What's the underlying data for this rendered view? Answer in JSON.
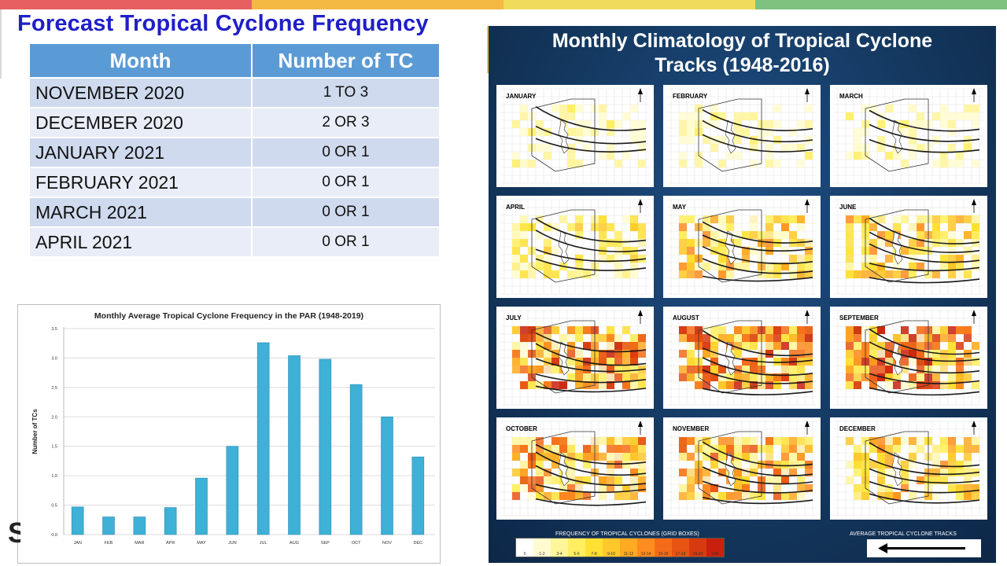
{
  "header": {
    "title": "Forecast Tropical Cyclone Frequency",
    "topbar_colors": [
      "#e66060",
      "#f4b942",
      "#f0dc5a",
      "#7fc27f",
      "#5fb8e0"
    ]
  },
  "forecast_table": {
    "headers": [
      "Month",
      "Number of TC"
    ],
    "rows": [
      {
        "month": "NOVEMBER 2020",
        "number": "1  TO 3"
      },
      {
        "month": "DECEMBER 2020",
        "number": "2  OR 3"
      },
      {
        "month": "JANUARY 2021",
        "number": "0 OR 1"
      },
      {
        "month": "FEBRUARY 2021",
        "number": "0 OR 1"
      },
      {
        "month": "MARCH 2021",
        "number": "0 OR 1"
      },
      {
        "month": "APRIL 2021",
        "number": "0 OR 1"
      }
    ],
    "colors": {
      "header": "#5b9bd5",
      "row_dark": "#cfdaee",
      "row_light": "#e8edf7"
    }
  },
  "chart_data": {
    "type": "bar",
    "title": "Monthly Average Tropical Cyclone Frequency in the PAR (1948-2019)",
    "xlabel": "",
    "ylabel": "Number of TCs",
    "categories": [
      "JAN",
      "FEB",
      "MAR",
      "APR",
      "MAY",
      "JUN",
      "JUL",
      "AUG",
      "SEP",
      "OCT",
      "NOV",
      "DEC"
    ],
    "values": [
      0.47,
      0.3,
      0.3,
      0.46,
      0.96,
      1.5,
      3.26,
      3.04,
      2.98,
      2.55,
      2.0,
      1.32
    ],
    "ylim": [
      0,
      3.5
    ],
    "yticks": [
      "0.0",
      "0.5",
      "1.0",
      "1.5",
      "2.0",
      "2.5",
      "3.0",
      "3.5"
    ],
    "grid": true,
    "bar_color": "#3fb0d6"
  },
  "climatology": {
    "title_line1": "Monthly Climatology of Tropical Cyclone",
    "title_line2": "Tracks (1948-2016)",
    "panels": [
      "JANUARY",
      "FEBRUARY",
      "MARCH",
      "APRIL",
      "MAY",
      "JUNE",
      "JULY",
      "AUGUST",
      "SEPTEMBER",
      "OCTOBER",
      "NOVEMBER",
      "DECEMBER"
    ],
    "legend_title": "FREQUENCY OF TROPICAL CYCLONES (GRID BOXES)",
    "legend_bins": [
      "0",
      "1-2",
      "3-4",
      "5-6",
      "7-8",
      "9-10",
      "11-12",
      "13-14",
      "15-16",
      "17-18",
      "19-20",
      ">20"
    ],
    "legend_colors": [
      "#ffffff",
      "#fffbd0",
      "#fff59a",
      "#ffee60",
      "#ffe033",
      "#ffc82a",
      "#ffaa22",
      "#ff8c1e",
      "#f56c18",
      "#e85414",
      "#d83a10",
      "#c8200c"
    ],
    "avg_tracks_label": "AVERAGE TROPICAL CYCLONE TRACKS",
    "panel_intensity": [
      1,
      1,
      1,
      2,
      3,
      3,
      5,
      5,
      5,
      4,
      4,
      3
    ]
  }
}
